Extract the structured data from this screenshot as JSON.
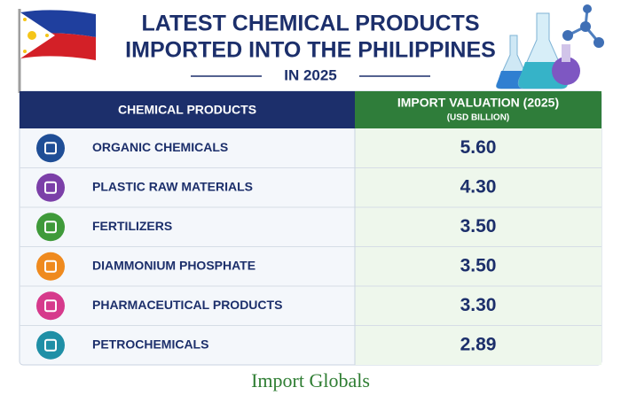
{
  "header": {
    "title_lines": [
      "LATEST CHEMICAL PRODUCTS",
      "IMPORTED INTO THE PHILIPPINES"
    ],
    "subtitle": "IN 2025"
  },
  "table": {
    "columns": [
      "CHEMICAL PRODUCTS",
      "IMPORT VALUATION (2025)"
    ],
    "value_unit": "(USD BILLION)",
    "rows": [
      [
        "ORGANIC CHEMICALS",
        "5.60"
      ],
      [
        "PLASTIC RAW MATERIALS",
        "4.30"
      ],
      [
        "FERTILIZERS",
        "3.50"
      ],
      [
        "DIAMMONIUM PHOSPHATE",
        "3.50"
      ],
      [
        "PHARMACEUTICAL PRODUCTS",
        "3.30"
      ],
      [
        "PETROCHEMICALS",
        "2.89"
      ]
    ]
  },
  "footer": {
    "brand": "Import Globals"
  }
}
